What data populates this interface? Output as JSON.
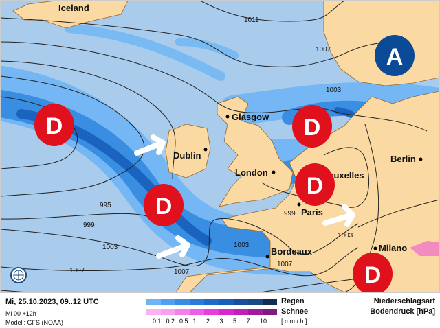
{
  "map": {
    "colors": {
      "sea": "#a9cbec",
      "land": "#fbd9a3",
      "rain_light": "#6eb5f5",
      "rain_mid": "#3a8ee2",
      "rain_dark": "#1a64c0",
      "low": "#e0101c",
      "high": "#0a4a96"
    },
    "cities": [
      {
        "name": "Iceland"
      },
      {
        "name": "Glasgow"
      },
      {
        "name": "Dublin"
      },
      {
        "name": "London"
      },
      {
        "name": "Bruxelles"
      },
      {
        "name": "Berlin"
      },
      {
        "name": "Paris"
      },
      {
        "name": "Bordeaux"
      },
      {
        "name": "Milano"
      }
    ],
    "isobars": [
      "1011",
      "1007",
      "1003",
      "995",
      "999",
      "999",
      "1003",
      "1003",
      "1007",
      "1007",
      "1007",
      "1003",
      "999"
    ],
    "pressure_markers": {
      "low": "D",
      "high": "A"
    },
    "globe_icon": "globe-icon"
  },
  "footer": {
    "datetime": "Mi, 25.10.2023, 09..12 UTC",
    "run": "Mi 00 +12h",
    "model": "Modell: GFS (NOAA)",
    "rain_label": "Regen",
    "snow_label": "Schnee",
    "unit": "[ mm / h ]",
    "ticks": [
      "0.1",
      "0.2",
      "0.5",
      "1",
      "2",
      "3",
      "5",
      "7",
      "10"
    ],
    "rain_colors": [
      "#6eb5f5",
      "#4fa0ee",
      "#3a8ee2",
      "#2a7cd6",
      "#1e6cc8",
      "#1a5fb6",
      "#174f9e",
      "#1a4a84",
      "#102e54"
    ],
    "snow_colors": [
      "#fbb3f3",
      "#f7a0ef",
      "#f282ea",
      "#ee5ee6",
      "#e93ede",
      "#d628cc",
      "#c020b8",
      "#a01c9c",
      "#801a80"
    ],
    "title1": "Niederschlagsart",
    "title2": "Bodendruck [hPa]"
  }
}
